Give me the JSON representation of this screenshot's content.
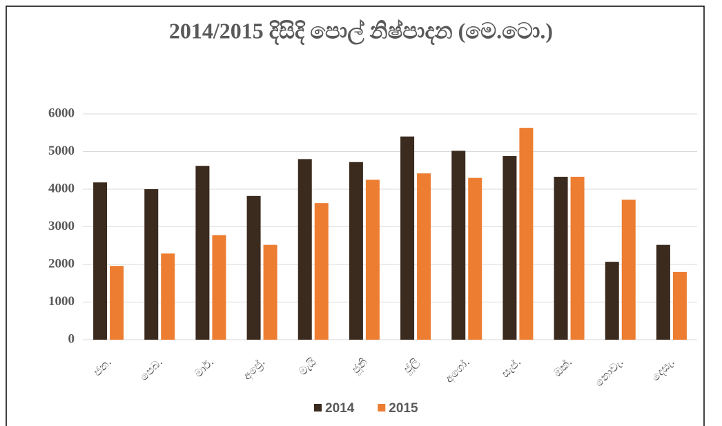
{
  "chart_data": {
    "type": "bar",
    "title": "2014/2015 දිසිදි පොල් නිෂ්පාදන (මෙ.ටො.)",
    "categories": [
      "ජන.",
      "පෙබ.",
      "මාර්.",
      "අප්‍රේ.",
      "මැයි",
      "ජූනි",
      "ජූලි",
      "අගෝ.",
      "සැප්.",
      "ඔක්.",
      "නොවැ.",
      "දෙසැ."
    ],
    "series": [
      {
        "name": "2014",
        "color": "#3b2a1e",
        "values": [
          4180,
          4000,
          4620,
          3820,
          4800,
          4720,
          5400,
          5020,
          4880,
          4330,
          2070,
          2520
        ]
      },
      {
        "name": "2015",
        "color": "#ed7d31",
        "values": [
          1960,
          2290,
          2780,
          2520,
          3630,
          4250,
          4420,
          4300,
          5630,
          4330,
          3720,
          1800
        ]
      }
    ],
    "ylim": [
      0,
      6000
    ],
    "yticks": [
      0,
      1000,
      2000,
      3000,
      4000,
      5000,
      6000
    ],
    "grid": true,
    "legend": "bottom"
  }
}
